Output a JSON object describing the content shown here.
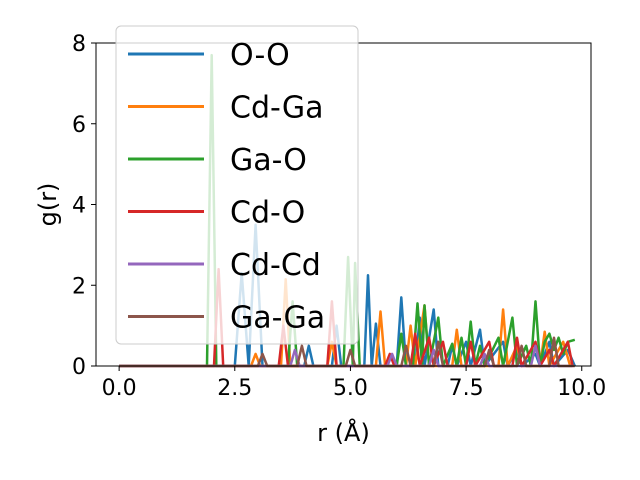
{
  "chart_data": {
    "type": "line",
    "xlabel": "r (Å)",
    "ylabel": "g(r)",
    "xlim": [
      -0.5,
      10.2
    ],
    "ylim": [
      0,
      8
    ],
    "xticks": [
      0.0,
      2.5,
      5.0,
      7.5,
      10.0
    ],
    "xtick_labels": [
      "0.0",
      "2.5",
      "5.0",
      "7.5",
      "10.0"
    ],
    "yticks": [
      0,
      2,
      4,
      6,
      8
    ],
    "ytick_labels": [
      "0",
      "2",
      "4",
      "6",
      "8"
    ],
    "grid": false,
    "legend_position": "upper-left",
    "series": [
      {
        "name": "O-O",
        "color": "#1f77b4",
        "points": [
          [
            0,
            0
          ],
          [
            2.5,
            0
          ],
          [
            2.65,
            2.3
          ],
          [
            2.8,
            0
          ],
          [
            2.95,
            3.5
          ],
          [
            3.1,
            0
          ],
          [
            4.0,
            0
          ],
          [
            4.1,
            0.5
          ],
          [
            4.2,
            0
          ],
          [
            4.6,
            0
          ],
          [
            4.7,
            1.0
          ],
          [
            4.8,
            0
          ],
          [
            5.3,
            0
          ],
          [
            5.38,
            2.25
          ],
          [
            5.46,
            0
          ],
          [
            5.55,
            1.05
          ],
          [
            5.65,
            0
          ],
          [
            6.0,
            0
          ],
          [
            6.1,
            1.7
          ],
          [
            6.2,
            0
          ],
          [
            6.4,
            0
          ],
          [
            6.5,
            1.2
          ],
          [
            6.6,
            0
          ],
          [
            6.8,
            1.4
          ],
          [
            6.9,
            0
          ],
          [
            7.1,
            0
          ],
          [
            7.2,
            0.5
          ],
          [
            7.3,
            0
          ],
          [
            7.5,
            0.6
          ],
          [
            7.6,
            0
          ],
          [
            7.8,
            0.9
          ],
          [
            7.9,
            0
          ],
          [
            8.3,
            0.6
          ],
          [
            8.4,
            0
          ],
          [
            8.6,
            0.4
          ],
          [
            8.7,
            0
          ],
          [
            9.0,
            0.3
          ],
          [
            9.1,
            0
          ],
          [
            9.3,
            0.6
          ],
          [
            9.4,
            0
          ],
          [
            9.7,
            0.4
          ],
          [
            9.85,
            0
          ]
        ]
      },
      {
        "name": "Cd-Ga",
        "color": "#ff7f0e",
        "points": [
          [
            0,
            0
          ],
          [
            2.85,
            0
          ],
          [
            2.95,
            0.3
          ],
          [
            3.05,
            0
          ],
          [
            3.5,
            0
          ],
          [
            3.6,
            2.15
          ],
          [
            3.7,
            0
          ],
          [
            4.5,
            0
          ],
          [
            4.6,
            0.6
          ],
          [
            4.7,
            0
          ],
          [
            5.55,
            0
          ],
          [
            5.65,
            1.35
          ],
          [
            5.75,
            0
          ],
          [
            6.2,
            0
          ],
          [
            6.3,
            1.0
          ],
          [
            6.4,
            0
          ],
          [
            6.6,
            1.5
          ],
          [
            6.7,
            0
          ],
          [
            7.2,
            0
          ],
          [
            7.3,
            0.9
          ],
          [
            7.4,
            0
          ],
          [
            8.2,
            0
          ],
          [
            8.3,
            1.4
          ],
          [
            8.4,
            0
          ],
          [
            8.6,
            0.5
          ],
          [
            8.7,
            0
          ],
          [
            9.1,
            0
          ],
          [
            9.2,
            0.85
          ],
          [
            9.3,
            0
          ],
          [
            9.6,
            0.6
          ],
          [
            9.75,
            0
          ]
        ]
      },
      {
        "name": "Ga-O",
        "color": "#2ca02c",
        "points": [
          [
            0,
            0
          ],
          [
            1.9,
            0
          ],
          [
            2.0,
            7.7
          ],
          [
            2.1,
            0
          ],
          [
            3.65,
            0
          ],
          [
            3.75,
            1.6
          ],
          [
            3.85,
            0
          ],
          [
            4.85,
            0
          ],
          [
            4.95,
            2.7
          ],
          [
            5.05,
            0
          ],
          [
            5.1,
            2.55
          ],
          [
            5.2,
            0
          ],
          [
            6.0,
            0
          ],
          [
            6.1,
            0.8
          ],
          [
            6.2,
            0
          ],
          [
            6.35,
            0
          ],
          [
            6.45,
            1.55
          ],
          [
            6.55,
            0
          ],
          [
            6.6,
            1.5
          ],
          [
            6.7,
            0
          ],
          [
            6.9,
            1.2
          ],
          [
            7.0,
            0
          ],
          [
            7.2,
            0.55
          ],
          [
            7.3,
            0
          ],
          [
            7.4,
            0.7
          ],
          [
            7.5,
            0
          ],
          [
            7.6,
            1.1
          ],
          [
            7.7,
            0
          ],
          [
            7.8,
            0.5
          ],
          [
            7.9,
            0
          ],
          [
            8.2,
            0.7
          ],
          [
            8.3,
            0
          ],
          [
            8.5,
            1.2
          ],
          [
            8.6,
            0
          ],
          [
            8.8,
            0.5
          ],
          [
            8.9,
            0
          ],
          [
            9.0,
            1.6
          ],
          [
            9.1,
            0
          ],
          [
            9.2,
            0.6
          ],
          [
            9.3,
            0.8
          ],
          [
            9.4,
            0.4
          ],
          [
            9.5,
            0.7
          ],
          [
            9.6,
            0.3
          ],
          [
            9.7,
            0.6
          ],
          [
            9.85,
            0.65
          ]
        ]
      },
      {
        "name": "Cd-O",
        "color": "#d62728",
        "points": [
          [
            0,
            0
          ],
          [
            2.05,
            0
          ],
          [
            2.15,
            2.4
          ],
          [
            2.25,
            0
          ],
          [
            3.45,
            0
          ],
          [
            3.55,
            1.0
          ],
          [
            3.65,
            0
          ],
          [
            4.5,
            0
          ],
          [
            4.6,
            1.6
          ],
          [
            4.7,
            0
          ],
          [
            5.75,
            0
          ],
          [
            5.85,
            0.3
          ],
          [
            5.95,
            0
          ],
          [
            6.3,
            0
          ],
          [
            6.4,
            0.8
          ],
          [
            6.5,
            0
          ],
          [
            6.7,
            0.7
          ],
          [
            6.8,
            0
          ],
          [
            7.0,
            0.6
          ],
          [
            7.1,
            0
          ],
          [
            7.5,
            0
          ],
          [
            7.6,
            0.6
          ],
          [
            7.7,
            0
          ],
          [
            8.0,
            0.6
          ],
          [
            8.1,
            0
          ],
          [
            8.5,
            0
          ],
          [
            8.6,
            0.7
          ],
          [
            8.7,
            0
          ],
          [
            9.0,
            0.6
          ],
          [
            9.1,
            0
          ],
          [
            9.3,
            0.4
          ],
          [
            9.4,
            0
          ],
          [
            9.7,
            0.6
          ],
          [
            9.8,
            0
          ]
        ]
      },
      {
        "name": "Cd-Cd",
        "color": "#9467bd",
        "points": [
          [
            0,
            0
          ],
          [
            3.7,
            0
          ],
          [
            3.8,
            0.4
          ],
          [
            3.9,
            0
          ],
          [
            5.8,
            0
          ],
          [
            5.9,
            0.3
          ],
          [
            6.0,
            0
          ],
          [
            6.7,
            0
          ],
          [
            6.8,
            0.4
          ],
          [
            6.9,
            0
          ],
          [
            7.8,
            0
          ],
          [
            7.9,
            0.3
          ],
          [
            8.0,
            0
          ],
          [
            8.9,
            0
          ],
          [
            9.0,
            0.5
          ],
          [
            9.1,
            0
          ],
          [
            9.8,
            0
          ]
        ]
      },
      {
        "name": "Ga-Ga",
        "color": "#8c564b",
        "points": [
          [
            0,
            0
          ],
          [
            3.0,
            0
          ],
          [
            3.1,
            0.3
          ],
          [
            3.2,
            0
          ],
          [
            3.85,
            0
          ],
          [
            3.95,
            0.5
          ],
          [
            4.05,
            0
          ],
          [
            4.9,
            0
          ],
          [
            5.0,
            0.4
          ],
          [
            5.1,
            0
          ],
          [
            6.1,
            0
          ],
          [
            6.2,
            0.5
          ],
          [
            6.3,
            0
          ],
          [
            6.8,
            0
          ],
          [
            6.9,
            0.6
          ],
          [
            7.0,
            0
          ],
          [
            7.9,
            0
          ],
          [
            8.0,
            0.4
          ],
          [
            8.1,
            0
          ],
          [
            8.6,
            0
          ],
          [
            8.7,
            0.5
          ],
          [
            8.8,
            0
          ],
          [
            9.3,
            0
          ],
          [
            9.4,
            0.7
          ],
          [
            9.5,
            0
          ],
          [
            9.85,
            0
          ]
        ]
      }
    ]
  }
}
